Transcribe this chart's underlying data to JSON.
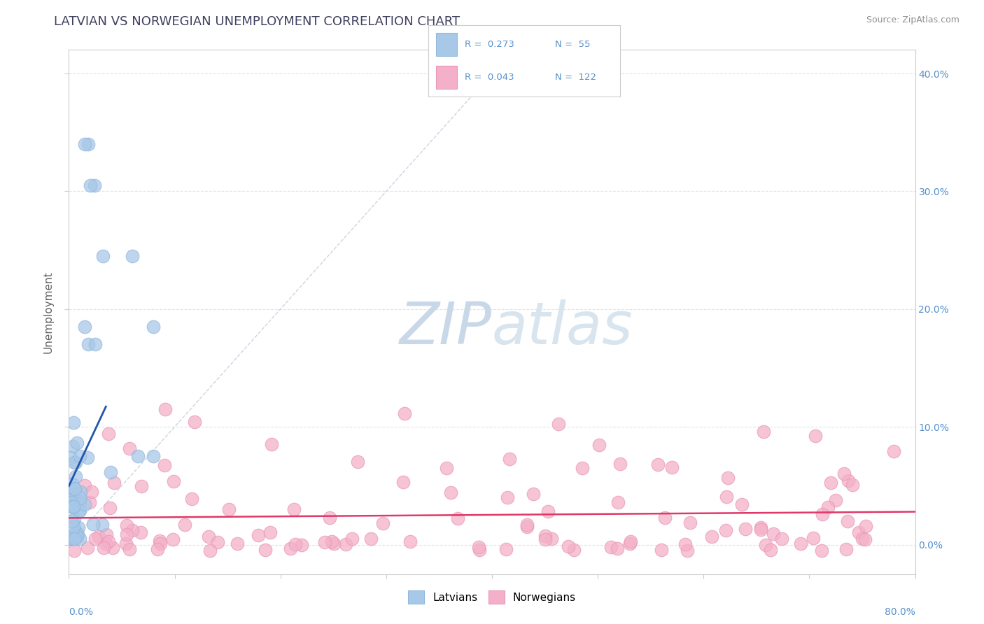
{
  "title": "LATVIAN VS NORWEGIAN UNEMPLOYMENT CORRELATION CHART",
  "source": "Source: ZipAtlas.com",
  "ylabel": "Unemployment",
  "ylabel_right_ticks": [
    "0.0%",
    "10.0%",
    "20.0%",
    "30.0%",
    "40.0%"
  ],
  "ylabel_right_vals": [
    0.0,
    0.1,
    0.2,
    0.3,
    0.4
  ],
  "xlim": [
    0.0,
    0.8
  ],
  "ylim": [
    -0.025,
    0.42
  ],
  "legend_r_latvians": "0.273",
  "legend_n_latvians": "55",
  "legend_r_norwegians": "0.043",
  "legend_n_norwegians": "122",
  "latvian_color": "#a8c8e8",
  "latvian_edge_color": "#90b8de",
  "latvian_line_color": "#2255aa",
  "norwegian_color": "#f4b0c8",
  "norwegian_edge_color": "#e898b8",
  "norwegian_line_color": "#e03868",
  "diagonal_color": "#c8d0dc",
  "watermark_zip_color": "#c8d8e8",
  "watermark_atlas_color": "#d8e4ee",
  "background_color": "#ffffff",
  "grid_color": "#dde4ee",
  "title_color": "#404060",
  "source_color": "#909090",
  "ylabel_color": "#606060",
  "tick_label_color": "#5590cc",
  "legend_border_color": "#cccccc"
}
